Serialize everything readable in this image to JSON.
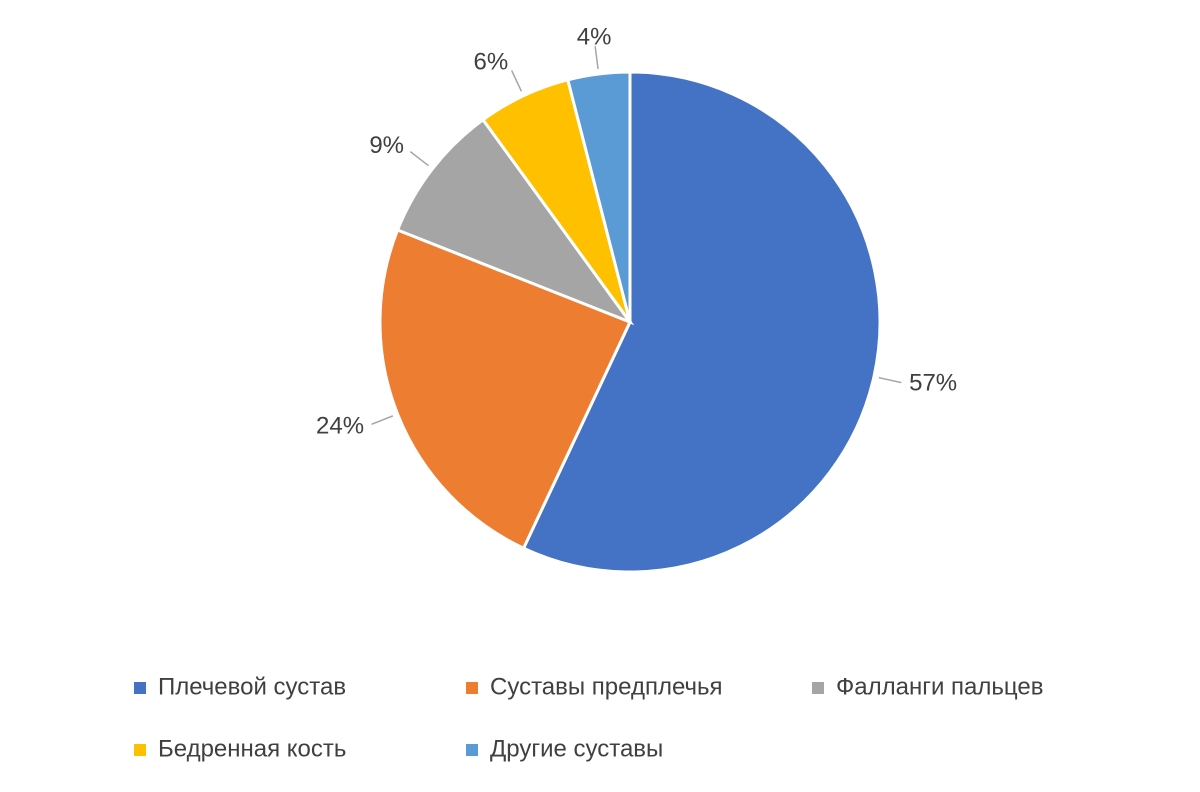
{
  "chart_data": {
    "type": "pie",
    "categories": [
      "Плечевой сустав",
      "Суставы предплечья",
      "Фалланги пальцев",
      "Бедренная кость",
      "Другие суставы"
    ],
    "values": [
      57,
      24,
      9,
      6,
      4
    ],
    "value_labels": [
      "57%",
      "24%",
      "9%",
      "6%",
      "4%"
    ],
    "colors": [
      "#4472c4",
      "#ed7d31",
      "#a5a5a5",
      "#ffc000",
      "#5b9bd5"
    ]
  }
}
